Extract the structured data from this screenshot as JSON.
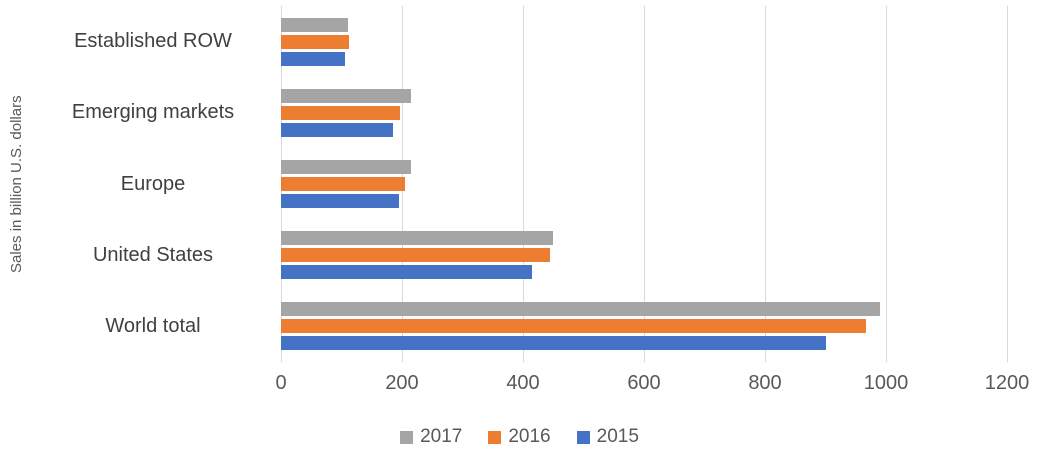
{
  "chart_data": {
    "type": "bar",
    "orientation": "horizontal",
    "title": "",
    "xlabel": "",
    "ylabel": "Sales in billion U.S. dollars",
    "categories": [
      "Established ROW",
      "Emerging markets",
      "Europe",
      "United States",
      "World total"
    ],
    "series": [
      {
        "name": "2017",
        "color": "#a5a5a5",
        "values": [
          110,
          215,
          215,
          450,
          990
        ]
      },
      {
        "name": "2016",
        "color": "#ed7d31",
        "values": [
          113,
          197,
          205,
          445,
          967
        ]
      },
      {
        "name": "2015",
        "color": "#4472c4",
        "values": [
          105,
          185,
          195,
          415,
          900
        ]
      }
    ],
    "xlim": [
      0,
      1200
    ],
    "xticks": [
      0,
      200,
      400,
      600,
      800,
      1000,
      1200
    ],
    "grid": true,
    "gridline_color": "#d9d9d9",
    "legend_position": "bottom",
    "legend_entries": [
      "2017",
      "2016",
      "2015"
    ]
  }
}
